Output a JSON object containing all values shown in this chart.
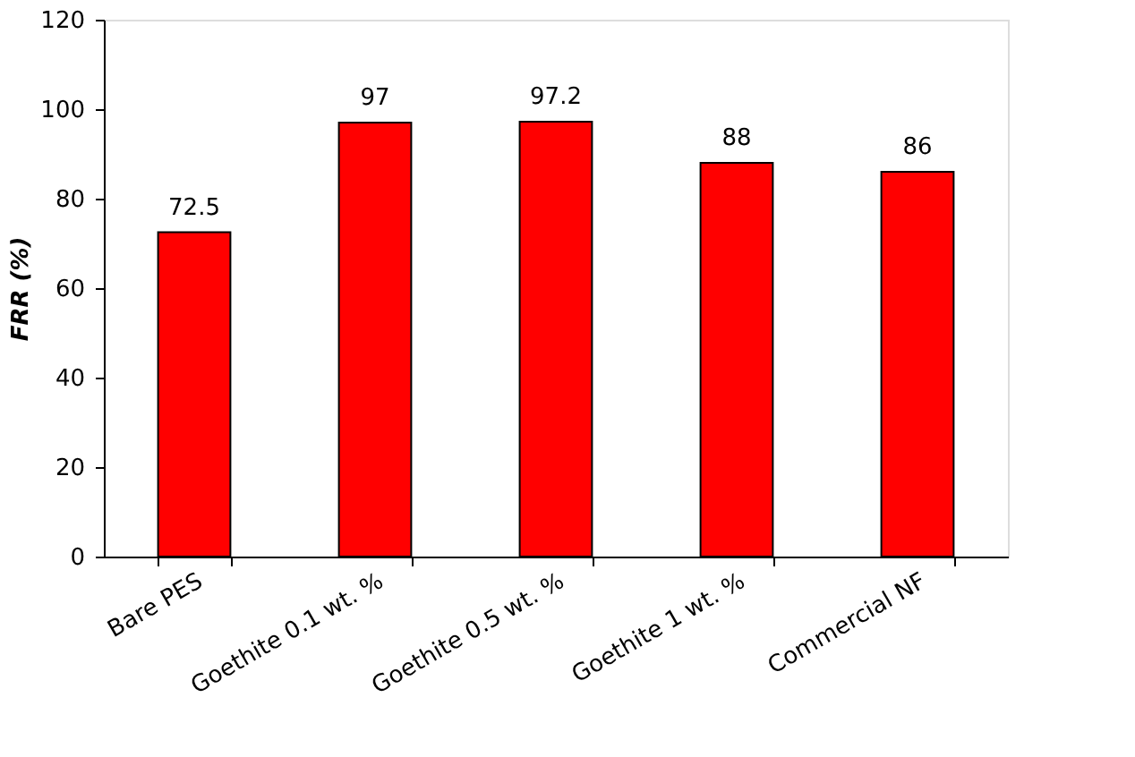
{
  "chart_data": {
    "type": "bar",
    "ylabel": "FRR (%)",
    "categories": [
      "Bare PES",
      "Goethite 0.1 wt. %",
      "Goethite 0.5 wt. %",
      "Goethite 1 wt. %",
      "Commercial NF"
    ],
    "values": [
      72.5,
      97,
      97.2,
      88,
      86
    ],
    "color": "#ff0000",
    "ylim": [
      0,
      120
    ],
    "yticks": [
      0,
      20,
      40,
      60,
      80,
      100,
      120
    ],
    "grid": false,
    "data_labels": true
  }
}
